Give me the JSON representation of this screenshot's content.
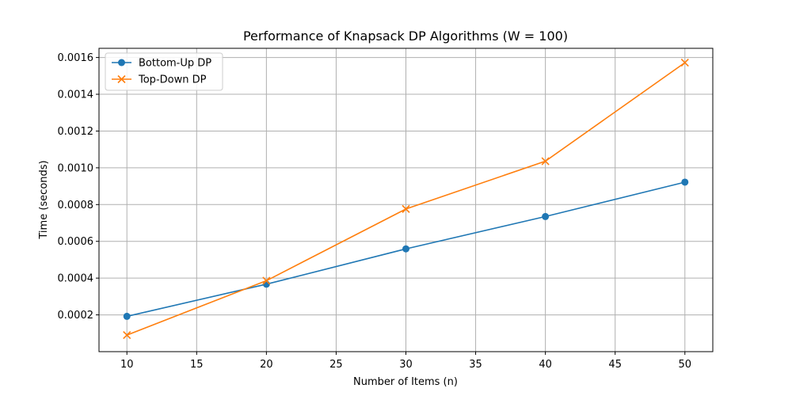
{
  "chart_data": {
    "type": "line",
    "title": "Performance of Knapsack DP Algorithms (W = 100)",
    "xlabel": "Number of Items (n)",
    "ylabel": "Time (seconds)",
    "x": [
      10,
      20,
      30,
      40,
      50
    ],
    "xlim": [
      8,
      52
    ],
    "ylim": [
      0.0,
      0.00165
    ],
    "x_ticks": [
      10,
      15,
      20,
      25,
      30,
      35,
      40,
      45,
      50
    ],
    "x_tick_labels": [
      "10",
      "15",
      "20",
      "25",
      "30",
      "35",
      "40",
      "45",
      "50"
    ],
    "y_ticks": [
      0.0002,
      0.0004,
      0.0006,
      0.0008,
      0.001,
      0.0012,
      0.0014,
      0.0016
    ],
    "y_tick_labels": [
      "0.0002",
      "0.0004",
      "0.0006",
      "0.0008",
      "0.0010",
      "0.0012",
      "0.0014",
      "0.0016"
    ],
    "grid": true,
    "legend_position": "upper-left",
    "series": [
      {
        "name": "Bottom-Up DP",
        "values": [
          0.000192,
          0.000367,
          0.000559,
          0.000735,
          0.000922
        ],
        "color": "#1f77b4",
        "marker": "circle"
      },
      {
        "name": "Top-Down DP",
        "values": [
          9e-05,
          0.000386,
          0.000776,
          0.001036,
          0.001572
        ],
        "color": "#ff7f0e",
        "marker": "x"
      }
    ]
  }
}
